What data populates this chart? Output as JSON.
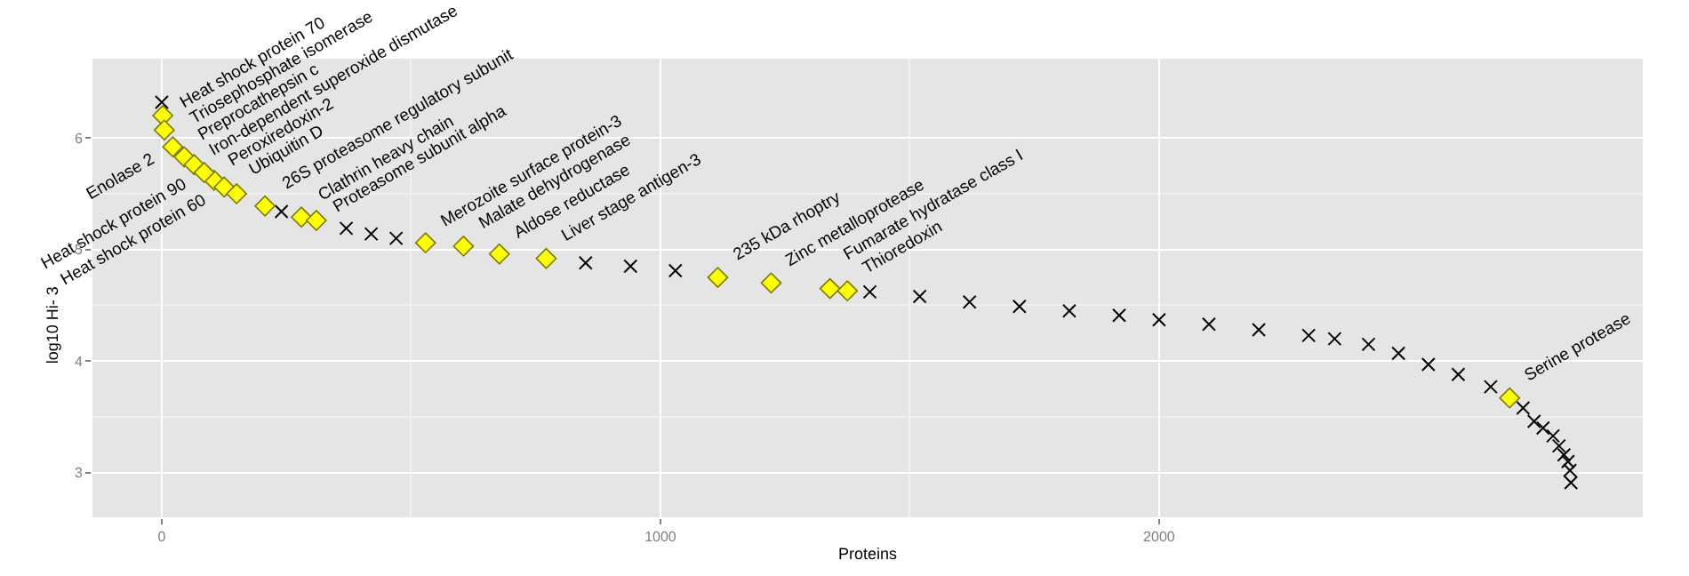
{
  "chart_data": {
    "type": "scatter",
    "xlabel": "Proteins",
    "ylabel": "log10 Hi- 3",
    "xlim": [
      -139,
      2970
    ],
    "ylim": [
      2.6,
      6.71
    ],
    "xticks": [
      0,
      1000,
      2000
    ],
    "yticks": [
      3,
      4,
      5,
      6
    ],
    "grid": true,
    "series": [
      {
        "color": "#000000",
        "marker": "cross",
        "x": [
          0,
          240,
          370,
          420,
          470,
          850,
          940,
          1030,
          1420,
          1520,
          1620,
          1720,
          1820,
          1920,
          2000,
          2100,
          2200,
          2300,
          2352,
          2420,
          2480,
          2540,
          2600,
          2665,
          2730,
          2752,
          2770,
          2790,
          2802,
          2812,
          2820,
          2824,
          2826
        ],
        "values": [
          6.32,
          5.34,
          5.19,
          5.14,
          5.1,
          4.88,
          4.85,
          4.81,
          4.62,
          4.58,
          4.53,
          4.49,
          4.45,
          4.41,
          4.37,
          4.33,
          4.28,
          4.23,
          4.2,
          4.15,
          4.07,
          3.97,
          3.88,
          3.77,
          3.58,
          3.46,
          3.4,
          3.33,
          3.24,
          3.16,
          3.1,
          3.02,
          2.91
        ]
      },
      {
        "color": "#ffff00",
        "marker": "diamond",
        "x": [
          2,
          5,
          45,
          65,
          105,
          22,
          85,
          125,
          150,
          207,
          280,
          310,
          529,
          605,
          677,
          771,
          1115,
          1222,
          1340,
          1375,
          2703
        ],
        "values": [
          6.2,
          6.07,
          5.83,
          5.76,
          5.62,
          5.92,
          5.69,
          5.56,
          5.5,
          5.39,
          5.29,
          5.26,
          5.06,
          5.03,
          4.96,
          4.92,
          4.75,
          4.7,
          4.65,
          4.63,
          3.67
        ]
      }
    ],
    "annotations": [
      {
        "text": "Heat shock protein 70",
        "x": 2,
        "y": 6.2
      },
      {
        "text": "Triosephosphate isomerase",
        "x": 5,
        "y": 6.07
      },
      {
        "text": "Preprocathepsin c",
        "x": 45,
        "y": 5.83
      },
      {
        "text": "Iron-dependent superoxide dismutase",
        "x": 65,
        "y": 5.76
      },
      {
        "text": "Peroxiredoxin-2",
        "x": 105,
        "y": 5.62
      },
      {
        "text": "Enolase 2",
        "x": 22,
        "y": 5.92
      },
      {
        "text": "Heat shock protein 90",
        "x": 85,
        "y": 5.69
      },
      {
        "text": "Heat shock protein 60",
        "x": 125,
        "y": 5.56
      },
      {
        "text": "Ubiquitin D",
        "x": 150,
        "y": 5.5
      },
      {
        "text": "26S proteasome regulatory subunit",
        "x": 207,
        "y": 5.39
      },
      {
        "text": "Clathrin heavy chain",
        "x": 280,
        "y": 5.29
      },
      {
        "text": "Proteasome subunit alpha",
        "x": 310,
        "y": 5.26
      },
      {
        "text": "Merozoite surface protein-3",
        "x": 529,
        "y": 5.06
      },
      {
        "text": "Malate dehydrogenase",
        "x": 605,
        "y": 5.03
      },
      {
        "text": "Aldose reductase",
        "x": 677,
        "y": 4.96
      },
      {
        "text": "Liver stage antigen-3",
        "x": 771,
        "y": 4.92
      },
      {
        "text": "235 kDa rhoptry",
        "x": 1115,
        "y": 4.75
      },
      {
        "text": "Zinc metalloprotease",
        "x": 1222,
        "y": 4.7
      },
      {
        "text": "Fumarate hydratase class I",
        "x": 1340,
        "y": 4.65
      },
      {
        "text": "Thioredoxin",
        "x": 1375,
        "y": 4.63
      },
      {
        "text": "Serine protease",
        "x": 2703,
        "y": 3.67
      }
    ]
  }
}
